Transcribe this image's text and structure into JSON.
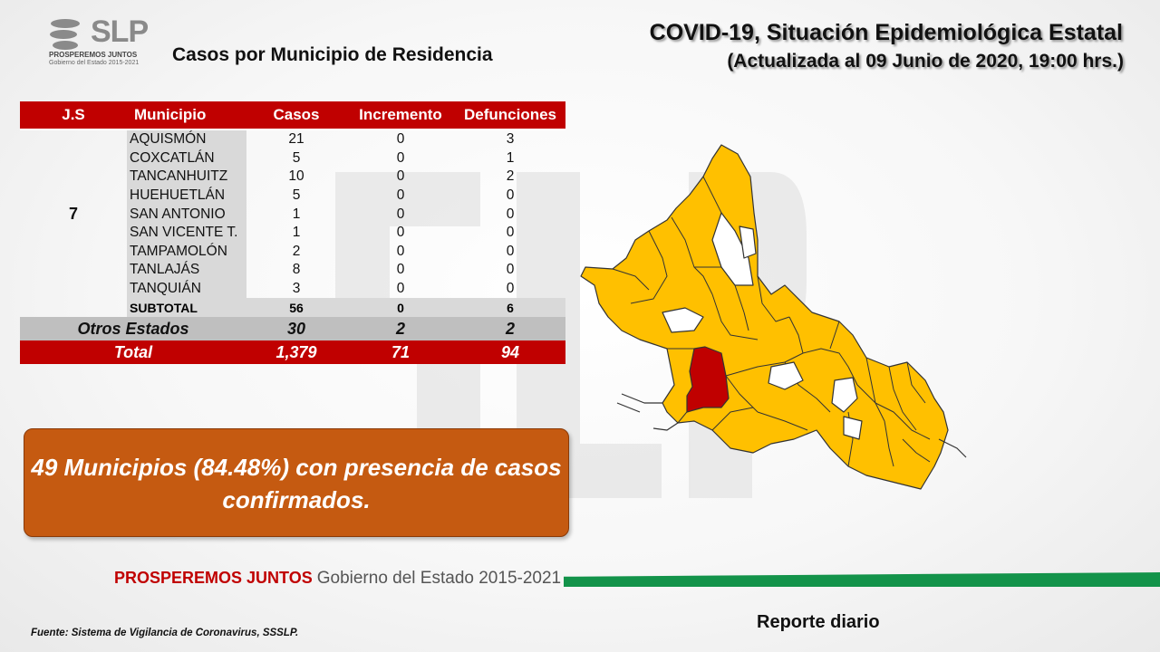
{
  "logo": {
    "text": "SLP",
    "tagline": "PROSPEREMOS JUNTOS",
    "sub": "Gobierno del Estado 2015-2021"
  },
  "subtitle": "Casos por Municipio  de Residencia",
  "title_line1": "COVID-19, Situación Epidemiológica Estatal",
  "title_line2": "(Actualizada al 09 Junio de 2020, 19:00 hrs.)",
  "table": {
    "headers": {
      "js": "J.S",
      "municipio": "Municipio",
      "casos": "Casos",
      "incremento": "Incremento",
      "defunciones": "Defunciones"
    },
    "js_value": "7",
    "rows": [
      {
        "municipio": "AQUISMÓN",
        "casos": "21",
        "incremento": "0",
        "defunciones": "3"
      },
      {
        "municipio": "COXCATLÁN",
        "casos": "5",
        "incremento": "0",
        "defunciones": "1"
      },
      {
        "municipio": "TANCANHUITZ",
        "casos": "10",
        "incremento": "0",
        "defunciones": "2"
      },
      {
        "municipio": "HUEHUETLÁN",
        "casos": "5",
        "incremento": "0",
        "defunciones": "0"
      },
      {
        "municipio": "SAN ANTONIO",
        "casos": "1",
        "incremento": "0",
        "defunciones": "0"
      },
      {
        "municipio": "SAN VICENTE T.",
        "casos": "1",
        "incremento": "0",
        "defunciones": "0"
      },
      {
        "municipio": "TAMPAMOLÓN",
        "casos": "2",
        "incremento": "0",
        "defunciones": "0"
      },
      {
        "municipio": "TANLAJÁS",
        "casos": "8",
        "incremento": "0",
        "defunciones": "0"
      },
      {
        "municipio": "TANQUIÁN",
        "casos": "3",
        "incremento": "0",
        "defunciones": "0"
      }
    ],
    "subtotal": {
      "label": "SUBTOTAL",
      "casos": "56",
      "incremento": "0",
      "defunciones": "6"
    },
    "otros": {
      "label": "Otros Estados",
      "casos": "30",
      "incremento": "2",
      "defunciones": "2"
    },
    "total": {
      "label": "Total",
      "casos": "1,379",
      "incremento": "71",
      "defunciones": "94"
    }
  },
  "callout": "49 Municipios (84.48%) con presencia de casos confirmados.",
  "map": {
    "colors": {
      "with_cases": "#ffc000",
      "highlight": "#c00000",
      "no_cases": "#ffffff",
      "border": "#333333"
    }
  },
  "footer": {
    "brand_bold": "PROSPEREMOS JUNTOS",
    "brand_rest": "Gobierno del Estado 2015-2021",
    "fuente": "Fuente: Sistema de Vigilancia de Coronavirus, SSSLP.",
    "reporte": "Reporte diario"
  }
}
